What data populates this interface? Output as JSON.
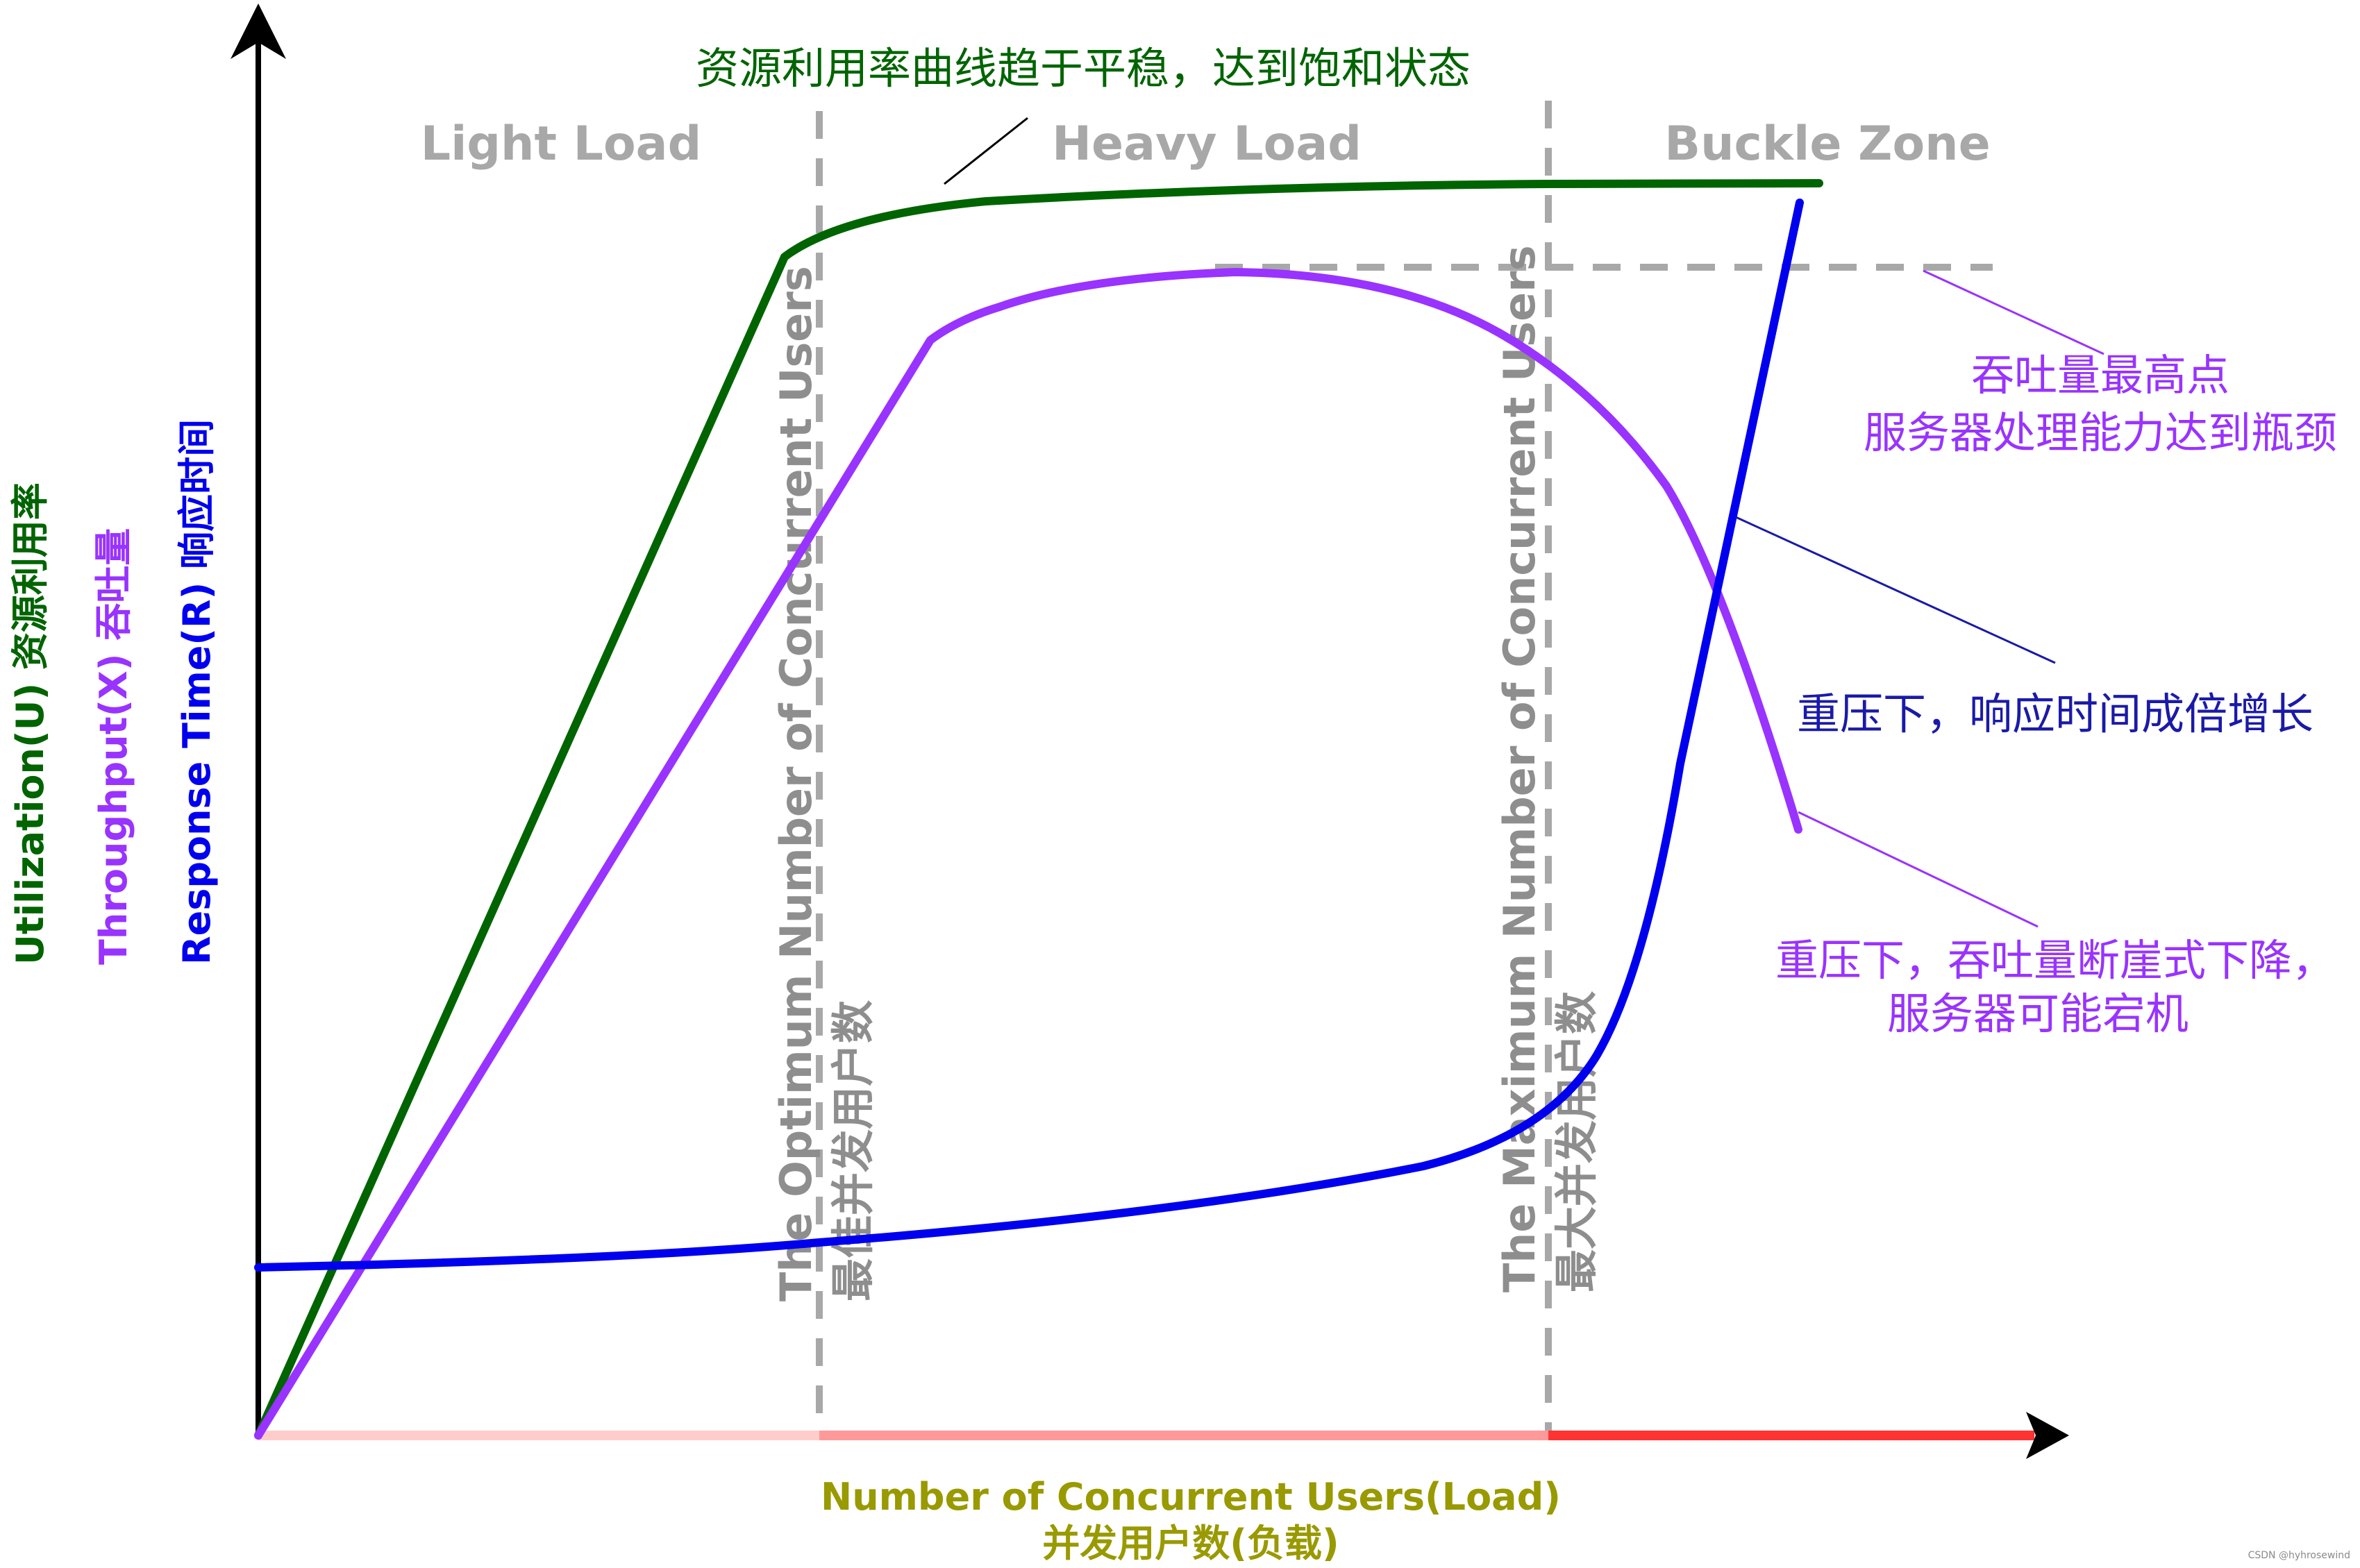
{
  "zones": {
    "light": "Light Load",
    "heavy": "Heavy Load",
    "buckle": "Buckle Zone"
  },
  "y_axis": {
    "utilization": "Utilization(U)  资源利用率",
    "throughput": "Throughput(X)  吞吐量",
    "response": "Response Time(R)  响应时间"
  },
  "x_axis": {
    "line1": "Number of Concurrent Users(Load)",
    "line2": "并发用户数(负载)"
  },
  "markers": {
    "optimum_en": "The Optimum Number of Concurrent Users",
    "optimum_cn": "最佳并发用户数",
    "maximum_en": "The Maximum Number of Concurrent Users",
    "maximum_cn": "最大并发用户数"
  },
  "annotations": {
    "utilization_plateau": "资源利用率曲线趋于平稳，达到饱和状态",
    "throughput_peak_1": "吞吐量最高点",
    "throughput_peak_2": "服务器处理能力达到瓶颈",
    "response_growth": "重压下，响应时间成倍增长",
    "throughput_drop_1": "重压下，吞吐量断崖式下降，",
    "throughput_drop_2": "服务器可能宕机"
  },
  "credit": "CSDN @hyhrosewind",
  "colors": {
    "utilization": "#006400",
    "throughput": "#9933ff",
    "response": "#0000ee",
    "annotation_blue": "#1a1aa8",
    "x_title": "#999900",
    "guide": "#a8a8a8",
    "load_light": "#ffcccc",
    "load_heavy": "#ff9999",
    "load_buckle": "#ff3333"
  }
}
